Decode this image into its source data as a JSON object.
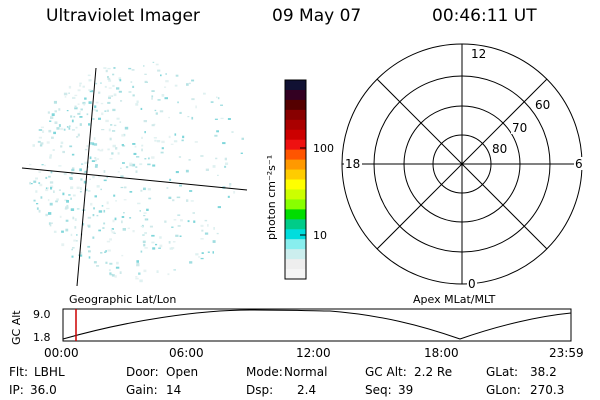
{
  "header": {
    "title": "Ultraviolet Imager",
    "date": "09 May 07",
    "time": "00:46:11 UT"
  },
  "colorbar": {
    "label": "photon cm⁻²s⁻¹",
    "ticks": [
      "100",
      "10"
    ],
    "colors": [
      "#111133",
      "#330022",
      "#550000",
      "#880000",
      "#aa0000",
      "#cc0000",
      "#ee1111",
      "#ff5500",
      "#ff9900",
      "#ffcc00",
      "#ffff00",
      "#ccff00",
      "#88ff00",
      "#00dd00",
      "#00cc88",
      "#00dddd",
      "#88eeee",
      "#cceeee",
      "#eeeeee",
      "#f5f5f5"
    ]
  },
  "polar_plot": {
    "mlt_labels": [
      "12",
      "18",
      "6",
      "0"
    ],
    "lat_labels": [
      "60",
      "70",
      "80"
    ]
  },
  "timeline": {
    "left_label": "Geographic Lat/Lon",
    "right_label": "Apex MLat/MLT",
    "axis_title": "GC Alt",
    "y_ticks": [
      "9.0",
      "1.8"
    ],
    "x_ticks": [
      "00:00",
      "06:00",
      "12:00",
      "18:00",
      "23:59"
    ],
    "current_marker_color": "#cc0000"
  },
  "info": {
    "row1": [
      {
        "label": "Flt:",
        "value": "LBHL"
      },
      {
        "label": "Door:",
        "value": "Open"
      },
      {
        "label": "Mode:",
        "value": "Normal"
      },
      {
        "label": "GC Alt:",
        "value": "2.2 Re"
      },
      {
        "label": "GLat:",
        "value": "38.2"
      }
    ],
    "row2": [
      {
        "label": "IP:",
        "value": "36.0"
      },
      {
        "label": "Gain:",
        "value": "14"
      },
      {
        "label": "Dsp:",
        "value": "2.4"
      },
      {
        "label": "Seq:",
        "value": "39"
      },
      {
        "label": "GLon:",
        "value": "270.3"
      }
    ]
  }
}
